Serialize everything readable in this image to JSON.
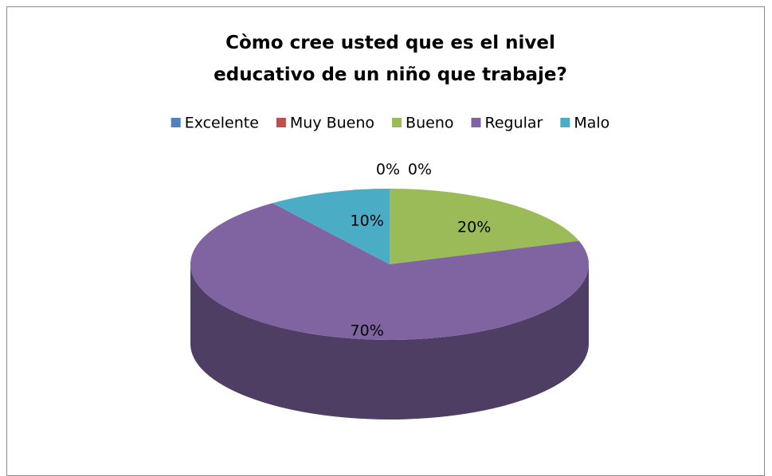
{
  "chart_data": {
    "type": "pie",
    "title": "Còmo cree usted que es el nivel educativo de un niño que trabaje?",
    "categories": [
      "Excelente",
      "Muy Bueno",
      "Bueno",
      "Regular",
      "Malo"
    ],
    "values": [
      0,
      0,
      20,
      70,
      10
    ],
    "value_labels": [
      "0%",
      "0%",
      "20%",
      "70%",
      "10%"
    ],
    "colors": [
      "#4f81bd",
      "#c0504d",
      "#9bbb59",
      "#8064a2",
      "#4bacc6"
    ],
    "legend": "top"
  }
}
